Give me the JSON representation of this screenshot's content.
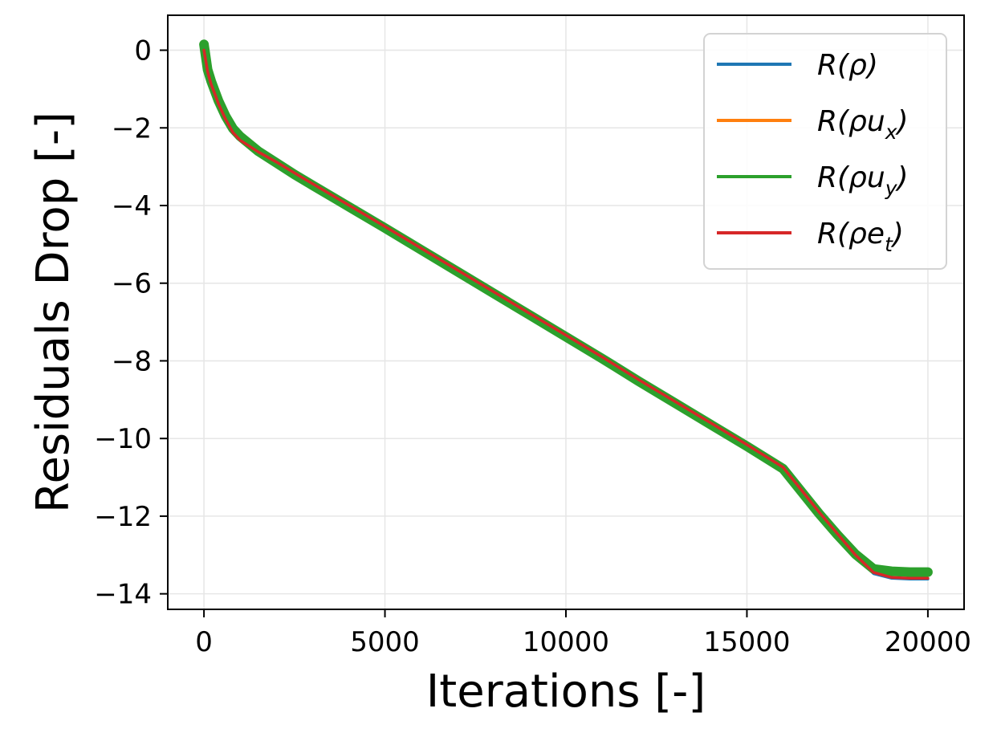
{
  "chart_data": {
    "type": "line",
    "xlabel": "Iterations [-]",
    "ylabel": "Residuals Drop [-]",
    "xlim": [
      -1000,
      21000
    ],
    "ylim": [
      -14.4,
      0.9
    ],
    "xticks": [
      0,
      5000,
      10000,
      15000,
      20000
    ],
    "yticks": [
      0,
      -2,
      -4,
      -6,
      -8,
      -10,
      -12,
      -14
    ],
    "xtick_labels": [
      "0",
      "5000",
      "10000",
      "15000",
      "20000"
    ],
    "ytick_labels": [
      "0",
      "−2",
      "−4",
      "−6",
      "−8",
      "−10",
      "−12",
      "−14"
    ],
    "grid": true,
    "legend": "top-right",
    "series": [
      {
        "name": "R(ρ)",
        "legend_label": {
          "base": "R(ρ)",
          "sub": ""
        },
        "color": "#1f77b4",
        "x": [
          0,
          100,
          200,
          300,
          400,
          600,
          800,
          1000,
          1500,
          2000,
          2500,
          3000,
          4000,
          5000,
          6000,
          7000,
          8000,
          9000,
          10000,
          11000,
          12000,
          13000,
          14000,
          15000,
          16000,
          16500,
          17000,
          17500,
          18000,
          18500,
          19000,
          19500,
          20000
        ],
        "y": [
          0.0,
          -0.55,
          -0.85,
          -1.1,
          -1.35,
          -1.75,
          -2.1,
          -2.3,
          -2.62,
          -2.9,
          -3.18,
          -3.45,
          -4.0,
          -4.55,
          -5.12,
          -5.68,
          -6.24,
          -6.8,
          -7.36,
          -7.92,
          -8.5,
          -9.06,
          -9.62,
          -10.18,
          -10.76,
          -11.35,
          -11.92,
          -12.48,
          -13.02,
          -13.48,
          -13.6,
          -13.62,
          -13.62
        ]
      },
      {
        "name": "R(ρu_x)",
        "legend_label": {
          "base": "R(ρu",
          "sub": "x"
        },
        "color": "#ff7f0e",
        "x": [
          0,
          100,
          200,
          300,
          400,
          600,
          800,
          1000,
          1500,
          2000,
          2500,
          3000,
          4000,
          5000,
          6000,
          7000,
          8000,
          9000,
          10000,
          11000,
          12000,
          13000,
          14000,
          15000,
          16000,
          16500,
          17000,
          17500,
          18000,
          18500,
          19000,
          19500,
          20000
        ],
        "y": [
          0.05,
          -0.5,
          -0.82,
          -1.08,
          -1.32,
          -1.72,
          -2.05,
          -2.26,
          -2.58,
          -2.86,
          -3.14,
          -3.42,
          -3.97,
          -4.52,
          -5.08,
          -5.65,
          -6.2,
          -6.76,
          -7.33,
          -7.89,
          -8.46,
          -9.02,
          -9.58,
          -10.14,
          -10.72,
          -11.3,
          -11.88,
          -12.42,
          -12.95,
          -13.3,
          -13.35,
          -13.36,
          -13.36
        ]
      },
      {
        "name": "R(ρu_y)",
        "legend_label": {
          "base": "R(ρu",
          "sub": "y"
        },
        "color": "#2ca02c",
        "x": [
          0,
          100,
          200,
          300,
          400,
          600,
          800,
          1000,
          1500,
          2000,
          2500,
          3000,
          4000,
          5000,
          6000,
          7000,
          8000,
          9000,
          10000,
          11000,
          12000,
          13000,
          14000,
          15000,
          16000,
          16500,
          17000,
          17500,
          18000,
          18500,
          19000,
          19500,
          20000
        ],
        "y": [
          0.15,
          -0.5,
          -0.8,
          -1.05,
          -1.3,
          -1.7,
          -2.02,
          -2.22,
          -2.6,
          -2.9,
          -3.2,
          -3.48,
          -4.03,
          -4.58,
          -5.14,
          -5.7,
          -6.26,
          -6.82,
          -7.38,
          -7.94,
          -8.52,
          -9.08,
          -9.64,
          -10.2,
          -10.78,
          -11.36,
          -11.94,
          -12.48,
          -12.98,
          -13.36,
          -13.42,
          -13.44,
          -13.44
        ]
      },
      {
        "name": "R(ρe_t)",
        "legend_label": {
          "base": "R(ρe",
          "sub": "t"
        },
        "color": "#d62728",
        "x": [
          0,
          100,
          200,
          300,
          400,
          600,
          800,
          1000,
          1500,
          2000,
          2500,
          3000,
          4000,
          5000,
          6000,
          7000,
          8000,
          9000,
          10000,
          11000,
          12000,
          13000,
          14000,
          15000,
          16000,
          16500,
          17000,
          17500,
          18000,
          18500,
          19000,
          19500,
          20000
        ],
        "y": [
          0.0,
          -0.55,
          -0.88,
          -1.12,
          -1.38,
          -1.78,
          -2.12,
          -2.32,
          -2.62,
          -2.88,
          -3.16,
          -3.44,
          -3.99,
          -4.54,
          -5.1,
          -5.66,
          -6.22,
          -6.78,
          -7.34,
          -7.9,
          -8.48,
          -9.04,
          -9.6,
          -10.16,
          -10.74,
          -11.32,
          -11.9,
          -12.45,
          -13.0,
          -13.45,
          -13.58,
          -13.6,
          -13.6
        ]
      }
    ]
  }
}
